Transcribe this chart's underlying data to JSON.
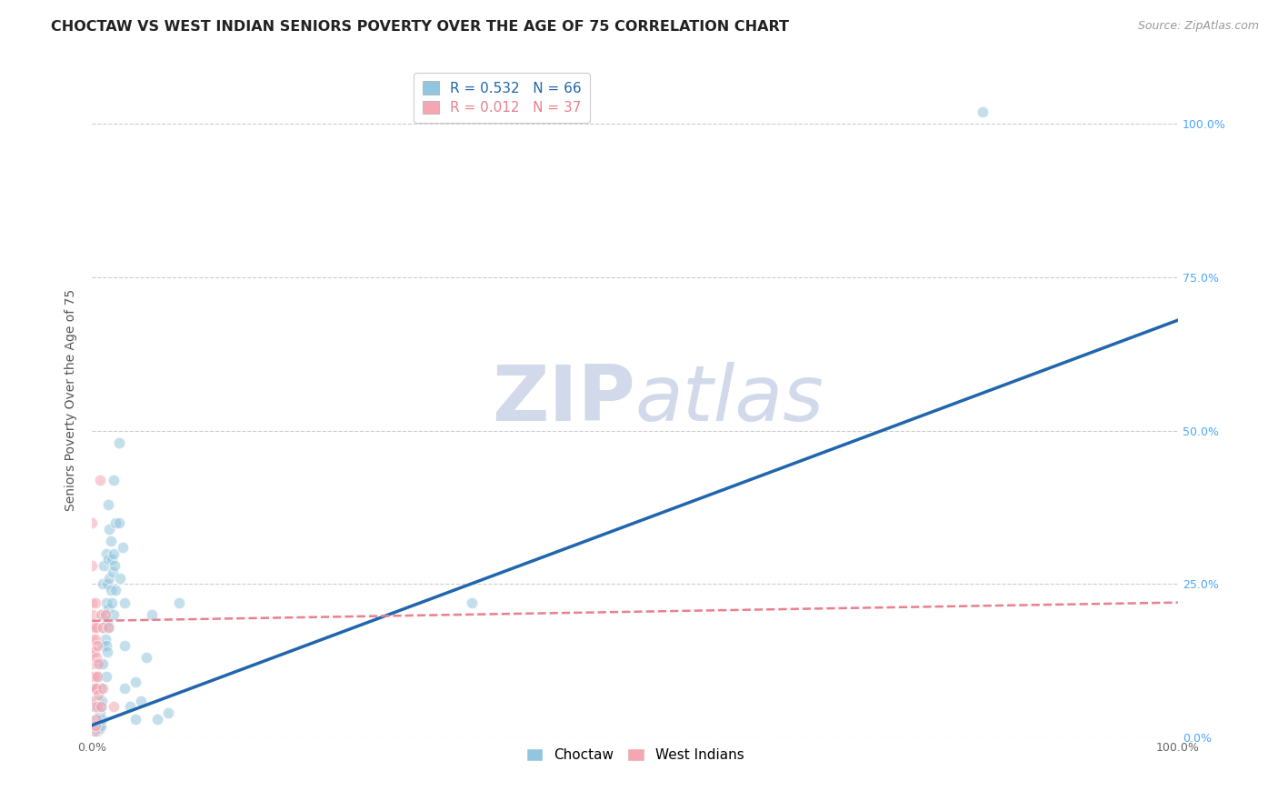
{
  "title": "CHOCTAW VS WEST INDIAN SENIORS POVERTY OVER THE AGE OF 75 CORRELATION CHART",
  "source": "Source: ZipAtlas.com",
  "ylabel": "Seniors Poverty Over the Age of 75",
  "watermark": "ZIPatlas",
  "legend_choctaw_r": "R = 0.532",
  "legend_choctaw_n": "N = 66",
  "legend_west_r": "R = 0.012",
  "legend_west_n": "N = 37",
  "choctaw_color": "#92c5de",
  "west_color": "#f4a6b2",
  "choctaw_line_color": "#2166ac",
  "west_line_color": "#e8808e",
  "choctaw_scatter": [
    [
      0.002,
      0.05
    ],
    [
      0.003,
      0.03
    ],
    [
      0.003,
      0.08
    ],
    [
      0.004,
      0.06
    ],
    [
      0.005,
      0.02
    ],
    [
      0.005,
      0.01
    ],
    [
      0.006,
      0.1
    ],
    [
      0.006,
      0.06
    ],
    [
      0.007,
      0.12
    ],
    [
      0.007,
      0.04
    ],
    [
      0.007,
      0.015
    ],
    [
      0.008,
      0.08
    ],
    [
      0.008,
      0.05
    ],
    [
      0.008,
      0.02
    ],
    [
      0.009,
      0.06
    ],
    [
      0.009,
      0.03
    ],
    [
      0.01,
      0.25
    ],
    [
      0.01,
      0.2
    ],
    [
      0.01,
      0.15
    ],
    [
      0.01,
      0.12
    ],
    [
      0.011,
      0.28
    ],
    [
      0.011,
      0.18
    ],
    [
      0.012,
      0.2
    ],
    [
      0.012,
      0.16
    ],
    [
      0.013,
      0.3
    ],
    [
      0.013,
      0.22
    ],
    [
      0.013,
      0.15
    ],
    [
      0.013,
      0.1
    ],
    [
      0.014,
      0.25
    ],
    [
      0.014,
      0.19
    ],
    [
      0.014,
      0.14
    ],
    [
      0.015,
      0.38
    ],
    [
      0.015,
      0.29
    ],
    [
      0.015,
      0.21
    ],
    [
      0.016,
      0.34
    ],
    [
      0.016,
      0.26
    ],
    [
      0.016,
      0.18
    ],
    [
      0.017,
      0.32
    ],
    [
      0.017,
      0.24
    ],
    [
      0.018,
      0.29
    ],
    [
      0.018,
      0.22
    ],
    [
      0.019,
      0.27
    ],
    [
      0.02,
      0.42
    ],
    [
      0.02,
      0.3
    ],
    [
      0.02,
      0.2
    ],
    [
      0.021,
      0.28
    ],
    [
      0.022,
      0.35
    ],
    [
      0.022,
      0.24
    ],
    [
      0.025,
      0.48
    ],
    [
      0.025,
      0.35
    ],
    [
      0.026,
      0.26
    ],
    [
      0.028,
      0.31
    ],
    [
      0.03,
      0.22
    ],
    [
      0.03,
      0.15
    ],
    [
      0.03,
      0.08
    ],
    [
      0.035,
      0.05
    ],
    [
      0.04,
      0.09
    ],
    [
      0.04,
      0.03
    ],
    [
      0.045,
      0.06
    ],
    [
      0.05,
      0.13
    ],
    [
      0.055,
      0.2
    ],
    [
      0.06,
      0.03
    ],
    [
      0.07,
      0.04
    ],
    [
      0.08,
      0.22
    ],
    [
      0.82,
      1.02
    ],
    [
      0.35,
      0.22
    ]
  ],
  "west_scatter": [
    [
      0.0,
      0.35
    ],
    [
      0.0,
      0.28
    ],
    [
      0.0,
      0.22
    ],
    [
      0.0,
      0.18
    ],
    [
      0.0,
      0.14
    ],
    [
      0.0,
      0.1
    ],
    [
      0.0,
      0.06
    ],
    [
      0.001,
      0.2
    ],
    [
      0.001,
      0.16
    ],
    [
      0.001,
      0.12
    ],
    [
      0.001,
      0.08
    ],
    [
      0.002,
      0.18
    ],
    [
      0.002,
      0.14
    ],
    [
      0.002,
      0.1
    ],
    [
      0.002,
      0.05
    ],
    [
      0.002,
      0.01
    ],
    [
      0.003,
      0.22
    ],
    [
      0.003,
      0.16
    ],
    [
      0.003,
      0.08
    ],
    [
      0.003,
      0.02
    ],
    [
      0.004,
      0.18
    ],
    [
      0.004,
      0.13
    ],
    [
      0.004,
      0.08
    ],
    [
      0.004,
      0.03
    ],
    [
      0.005,
      0.15
    ],
    [
      0.005,
      0.1
    ],
    [
      0.005,
      0.05
    ],
    [
      0.006,
      0.12
    ],
    [
      0.006,
      0.07
    ],
    [
      0.007,
      0.42
    ],
    [
      0.008,
      0.2
    ],
    [
      0.008,
      0.05
    ],
    [
      0.01,
      0.18
    ],
    [
      0.01,
      0.08
    ],
    [
      0.012,
      0.2
    ],
    [
      0.015,
      0.18
    ],
    [
      0.02,
      0.05
    ]
  ],
  "choctaw_line_x": [
    0.0,
    1.0
  ],
  "choctaw_line_y": [
    0.02,
    0.68
  ],
  "west_line_x": [
    0.0,
    1.0
  ],
  "west_line_y": [
    0.19,
    0.22
  ],
  "xlim": [
    0.0,
    1.0
  ],
  "ylim": [
    0.0,
    1.1
  ],
  "yticks": [
    0.0,
    0.25,
    0.5,
    0.75,
    1.0
  ],
  "ytick_labels": [
    "0.0%",
    "25.0%",
    "50.0%",
    "75.0%",
    "100.0%"
  ],
  "grid_color": "#cccccc",
  "background_color": "#ffffff",
  "title_fontsize": 11.5,
  "source_fontsize": 9,
  "axis_label_fontsize": 10,
  "tick_fontsize": 9,
  "legend_fontsize": 11,
  "watermark_color": "#ccd5e8",
  "scatter_size": 80,
  "scatter_alpha": 0.55,
  "scatter_edge_color": "white",
  "scatter_edge_width": 0.8
}
